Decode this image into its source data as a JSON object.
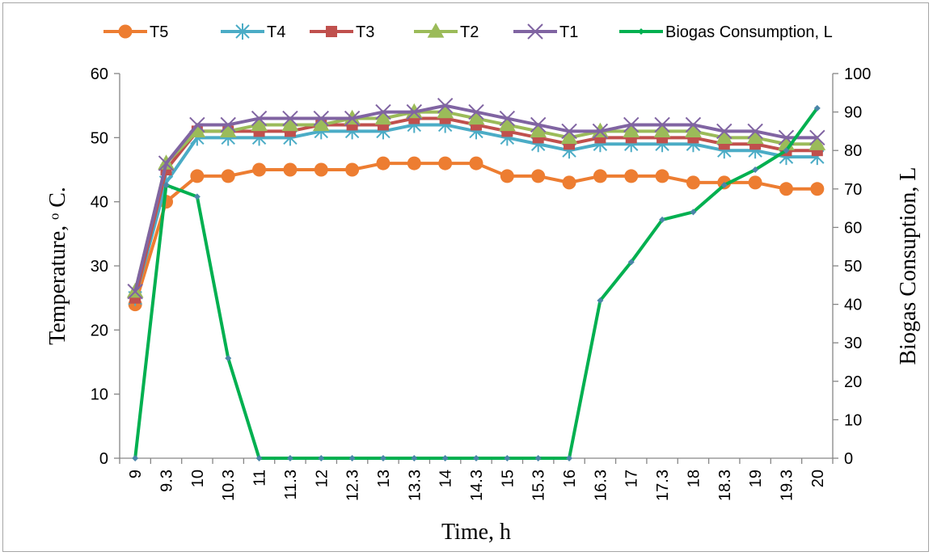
{
  "chart_data": {
    "type": "line",
    "xlabel": "Time, h",
    "ylabel": "Temperature, ᵒ C.",
    "y2label": "Biogas Consuption, L",
    "ylim": [
      0,
      60
    ],
    "y2lim": [
      0,
      100
    ],
    "yticks": [
      "0",
      "10",
      "20",
      "30",
      "40",
      "50",
      "60"
    ],
    "y2ticks": [
      "0",
      "10",
      "20",
      "30",
      "40",
      "50",
      "60",
      "70",
      "80",
      "90",
      "100"
    ],
    "grid": false,
    "legend_position": "top",
    "categories": [
      "9",
      "9.3",
      "10",
      "10.3",
      "11",
      "11.3",
      "12",
      "12.3",
      "13",
      "13.3",
      "14",
      "14.3",
      "15",
      "15.3",
      "16",
      "16.3",
      "17",
      "17.3",
      "18",
      "18.3",
      "19",
      "19.3",
      "20"
    ],
    "series": [
      {
        "name": "T5",
        "axis": "left",
        "color": "#ED7D31",
        "marker": "circle",
        "values": [
          24,
          40,
          44,
          44,
          45,
          45,
          45,
          45,
          46,
          46,
          46,
          46,
          44,
          44,
          43,
          44,
          44,
          44,
          43,
          43,
          43,
          42,
          42
        ]
      },
      {
        "name": "T4",
        "axis": "left",
        "color": "#4BACC6",
        "marker": "asterisk",
        "values": [
          25,
          43,
          50,
          50,
          50,
          50,
          51,
          51,
          51,
          52,
          52,
          51,
          50,
          49,
          48,
          49,
          49,
          49,
          49,
          48,
          48,
          47,
          47
        ]
      },
      {
        "name": "T3",
        "axis": "left",
        "color": "#C0504D",
        "marker": "square",
        "values": [
          25,
          45,
          51,
          51,
          51,
          51,
          52,
          52,
          52,
          53,
          53,
          52,
          51,
          50,
          49,
          50,
          50,
          50,
          50,
          49,
          49,
          48,
          48
        ]
      },
      {
        "name": "T2",
        "axis": "left",
        "color": "#9BBB59",
        "marker": "triangle",
        "values": [
          26,
          46,
          51,
          51,
          52,
          52,
          52,
          53,
          53,
          54,
          54,
          53,
          52,
          51,
          50,
          51,
          51,
          51,
          51,
          50,
          50,
          49,
          49
        ]
      },
      {
        "name": "T1",
        "axis": "left",
        "color": "#8064A2",
        "marker": "x",
        "values": [
          26,
          46,
          52,
          52,
          53,
          53,
          53,
          53,
          54,
          54,
          55,
          54,
          53,
          52,
          51,
          51,
          52,
          52,
          52,
          51,
          51,
          50,
          50
        ]
      },
      {
        "name": "Biogas Consumption, L",
        "axis": "right",
        "color": "#00B050",
        "marker": "diamond",
        "values": [
          0,
          71,
          68,
          26,
          0,
          0,
          0,
          0,
          0,
          0,
          0,
          0,
          0,
          0,
          0,
          41,
          51,
          62,
          64,
          71,
          75,
          80,
          91
        ]
      }
    ]
  }
}
